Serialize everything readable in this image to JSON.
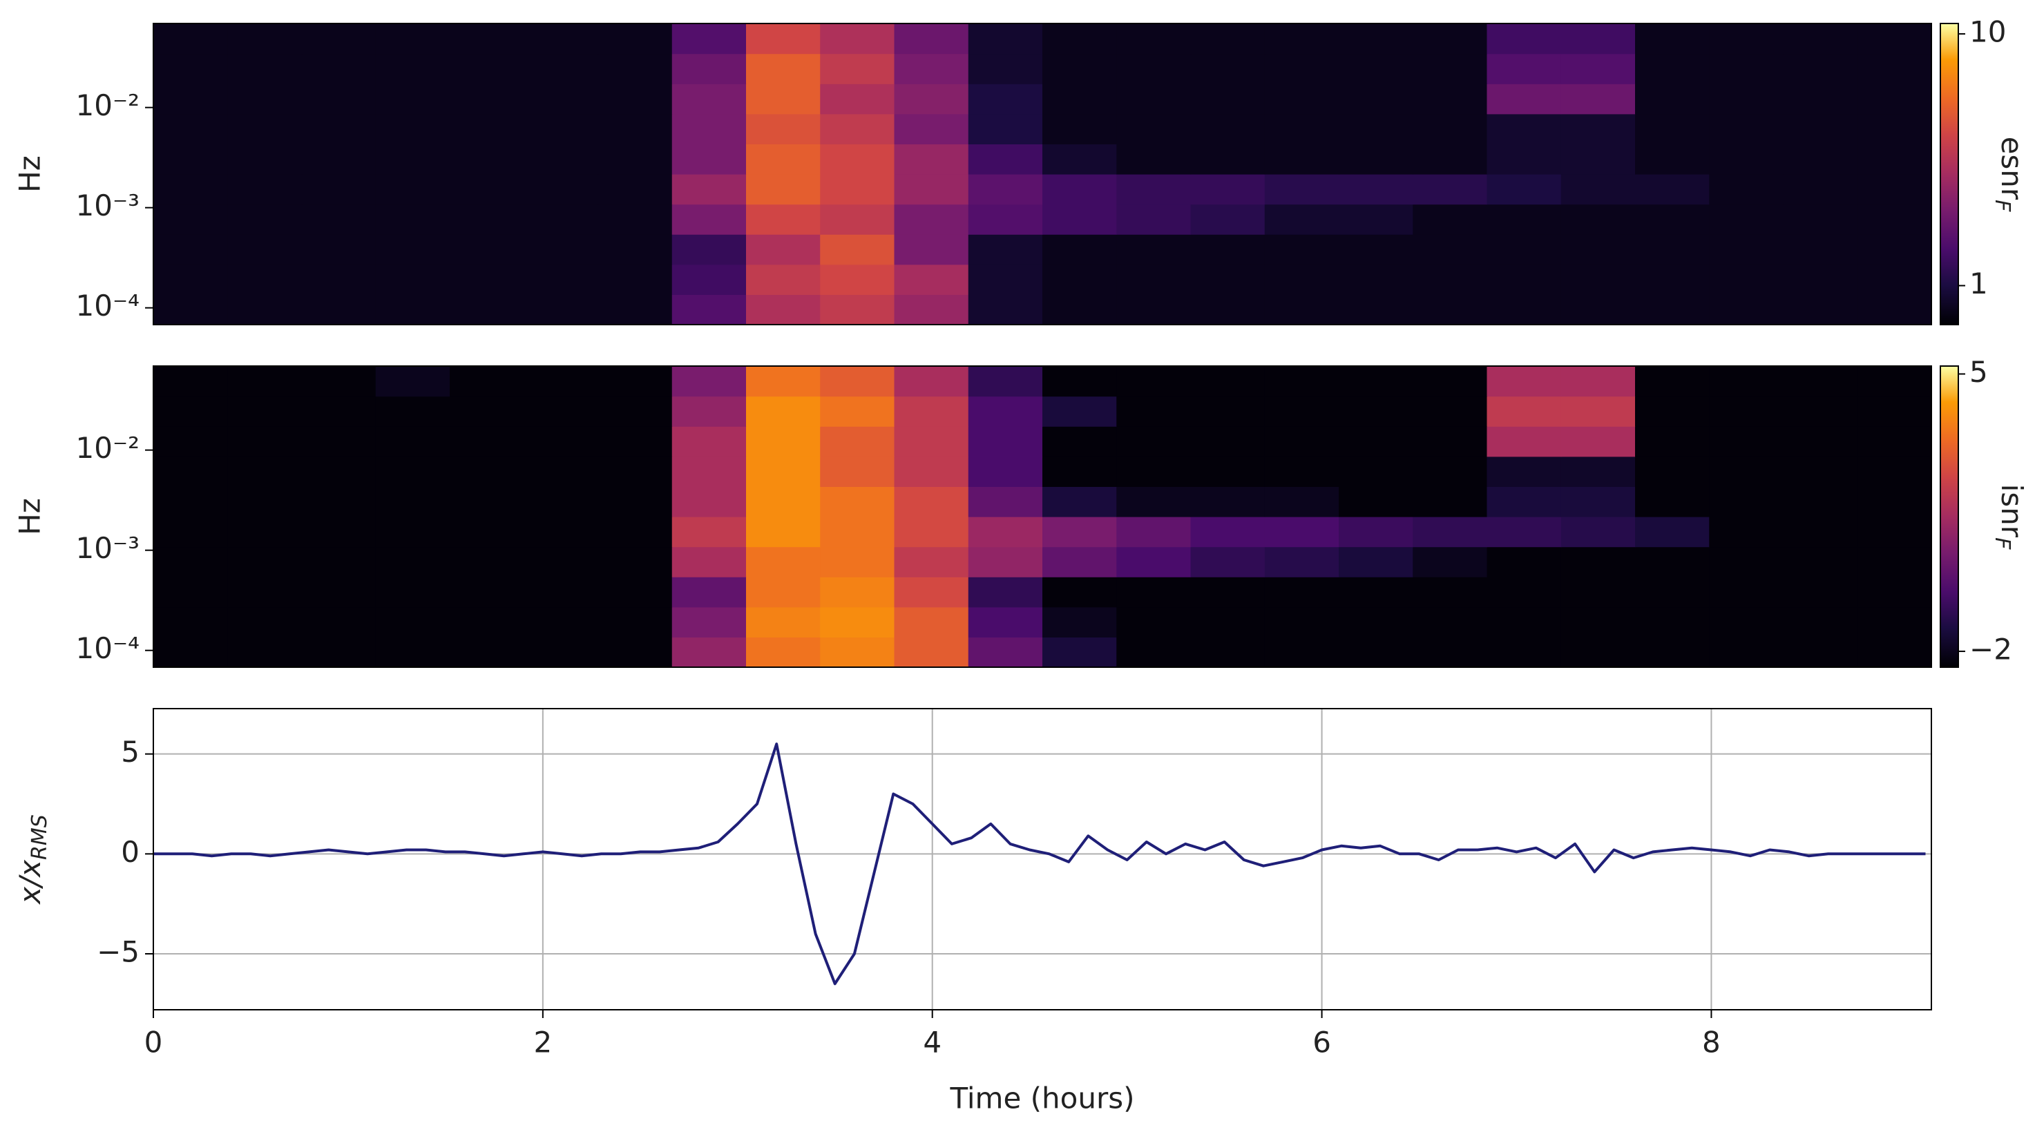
{
  "chart_data": [
    {
      "type": "heatmap",
      "ylabel": "Hz",
      "colormap": "inferno",
      "log_y": true,
      "xlim": [
        0,
        9.13
      ],
      "ylim": [
        6.8e-05,
        0.069
      ],
      "yticks": [
        {
          "value": 0.0001,
          "label": "10⁻⁴"
        },
        {
          "value": 0.001,
          "label": "10⁻³"
        },
        {
          "value": 0.01,
          "label": "10⁻²"
        }
      ],
      "zlim": [
        0.7,
        11
      ],
      "zlog": true,
      "zticks": [
        1,
        10
      ],
      "colorbar_label": "esnr",
      "colorbar_label_sub": "F",
      "z": [
        [
          0.8,
          0.8,
          0.8,
          0.8,
          0.8,
          0.8,
          0.8,
          1.5,
          3,
          3.5,
          2.5,
          0.9,
          0.8,
          0.8,
          0.8,
          0.8,
          0.8,
          0.8,
          0.8,
          0.8,
          0.8,
          0.8,
          0.8,
          0.8
        ],
        [
          0.8,
          0.8,
          0.8,
          0.8,
          0.8,
          0.8,
          0.8,
          1.3,
          3.5,
          4,
          2.8,
          0.9,
          0.8,
          0.8,
          0.8,
          0.8,
          0.8,
          0.8,
          0.8,
          0.8,
          0.8,
          0.8,
          0.8,
          0.8
        ],
        [
          0.8,
          0.8,
          0.8,
          0.8,
          0.8,
          0.8,
          0.8,
          1.2,
          3,
          4.5,
          2,
          0.9,
          0.8,
          0.8,
          0.8,
          0.8,
          0.8,
          0.8,
          0.8,
          0.8,
          0.8,
          0.8,
          0.8,
          0.8
        ],
        [
          0.8,
          0.8,
          0.8,
          0.8,
          0.8,
          0.8,
          0.8,
          2,
          4,
          3.5,
          2,
          1.5,
          1.3,
          1.2,
          1.1,
          0.9,
          0.9,
          0.8,
          0.8,
          0.8,
          0.8,
          0.8,
          0.8,
          0.8
        ],
        [
          0.8,
          0.8,
          0.8,
          0.8,
          0.8,
          0.8,
          0.8,
          2.5,
          5,
          4,
          2.5,
          1.6,
          1.3,
          1.2,
          1.2,
          1.1,
          1.1,
          1.1,
          1,
          0.9,
          0.9,
          0.8,
          0.8,
          0.8
        ],
        [
          0.8,
          0.8,
          0.8,
          0.8,
          0.8,
          0.8,
          0.8,
          2,
          5,
          4,
          2.5,
          1.3,
          0.9,
          0.8,
          0.8,
          0.8,
          0.8,
          0.8,
          0.9,
          0.9,
          0.8,
          0.8,
          0.8,
          0.8
        ],
        [
          0.8,
          0.8,
          0.8,
          0.8,
          0.8,
          0.8,
          0.8,
          2,
          4.5,
          3.5,
          2,
          1,
          0.8,
          0.8,
          0.8,
          0.8,
          0.8,
          0.8,
          0.9,
          0.9,
          0.8,
          0.8,
          0.8,
          0.8
        ],
        [
          0.8,
          0.8,
          0.8,
          0.8,
          0.8,
          0.8,
          0.8,
          2,
          5,
          3,
          2.2,
          1,
          0.8,
          0.8,
          0.8,
          0.8,
          0.8,
          0.8,
          1.8,
          1.8,
          0.8,
          0.8,
          0.8,
          0.8
        ],
        [
          0.8,
          0.8,
          0.8,
          0.8,
          0.8,
          0.8,
          0.8,
          1.8,
          5,
          3.5,
          2,
          0.9,
          0.8,
          0.8,
          0.8,
          0.8,
          0.8,
          0.8,
          1.5,
          1.5,
          0.8,
          0.8,
          0.8,
          0.8
        ],
        [
          0.8,
          0.8,
          0.8,
          0.8,
          0.8,
          0.8,
          0.8,
          1.5,
          4,
          3,
          1.8,
          0.9,
          0.8,
          0.8,
          0.8,
          0.8,
          0.8,
          0.8,
          1.3,
          1.3,
          0.8,
          0.8,
          0.8,
          0.8
        ]
      ]
    },
    {
      "type": "heatmap",
      "ylabel": "Hz",
      "colormap": "inferno",
      "log_y": true,
      "xlim": [
        0,
        9.13
      ],
      "ylim": [
        6.8e-05,
        0.069
      ],
      "yticks": [
        {
          "value": 0.0001,
          "label": "10⁻⁴"
        },
        {
          "value": 0.001,
          "label": "10⁻³"
        },
        {
          "value": 0.01,
          "label": "10⁻²"
        }
      ],
      "zlim": [
        -2.4,
        5.2
      ],
      "zlog": false,
      "zticks": [
        {
          "value": -2,
          "label": "−2"
        },
        5
      ],
      "colorbar_label": "isnr",
      "colorbar_label_sub": "F",
      "z": [
        [
          -2.3,
          -2.3,
          -2.3,
          -2.3,
          -2.3,
          -2.3,
          -2.3,
          1,
          3.5,
          3.8,
          3,
          0,
          -1.5,
          -2.3,
          -2.3,
          -2.3,
          -2.3,
          -2.3,
          -2.3,
          -2.3,
          -2.3,
          -2.3,
          -2.3,
          -2.3
        ],
        [
          -2.3,
          -2.3,
          -2.3,
          -2.3,
          -2.3,
          -2.3,
          -2.3,
          0.5,
          3.8,
          4,
          3,
          -0.5,
          -2,
          -2.3,
          -2.3,
          -2.3,
          -2.3,
          -2.3,
          -2.3,
          -2.3,
          -2.3,
          -2.3,
          -2.3,
          -2.3
        ],
        [
          -2.3,
          -2.3,
          -2.3,
          -2.3,
          -2.3,
          -2.3,
          -2.3,
          0,
          3.5,
          3.8,
          2.5,
          -1,
          -2.3,
          -2.3,
          -2.3,
          -2.3,
          -2.3,
          -2.3,
          -2.3,
          -2.3,
          -2.3,
          -2.3,
          -2.3,
          -2.3
        ],
        [
          -2.3,
          -2.3,
          -2.3,
          -2.3,
          -2.3,
          -2.3,
          -2.3,
          1.5,
          3.5,
          3.5,
          2,
          1,
          0,
          -0.5,
          -1,
          -1.2,
          -1.5,
          -2,
          -2.3,
          -2.3,
          -2.3,
          -2.3,
          -2.3,
          -2.3
        ],
        [
          -2.3,
          -2.3,
          -2.3,
          -2.3,
          -2.3,
          -2.3,
          -2.3,
          2,
          4,
          3.5,
          2.5,
          1.2,
          0.5,
          0,
          -0.5,
          -0.5,
          -0.8,
          -1,
          -1,
          -1.2,
          -1.5,
          -2.3,
          -2.3,
          -2.3
        ],
        [
          -2.3,
          -2.3,
          -2.3,
          -2.3,
          -2.3,
          -2.3,
          -2.3,
          1.5,
          4,
          3.5,
          2.5,
          0,
          -1.5,
          -2,
          -2,
          -2,
          -2.3,
          -2.3,
          -1.5,
          -1.5,
          -2.3,
          -2.3,
          -2.3,
          -2.3
        ],
        [
          -2.3,
          -2.3,
          -2.3,
          -2.3,
          -2.3,
          -2.3,
          -2.3,
          1.5,
          4,
          3,
          2,
          -0.5,
          -2.3,
          -2.3,
          -2.3,
          -2.3,
          -2.3,
          -2.3,
          -1.8,
          -1.8,
          -2.3,
          -2.3,
          -2.3,
          -2.3
        ],
        [
          -2.3,
          -2.3,
          -2.3,
          -2.3,
          -2.3,
          -2.3,
          -2.3,
          1.5,
          4,
          3,
          2,
          -0.5,
          -2.3,
          -2.3,
          -2.3,
          -2.3,
          -2.3,
          -2.3,
          1.5,
          1.5,
          -2.3,
          -2.3,
          -2.3,
          -2.3
        ],
        [
          -2.3,
          -2.3,
          -2.3,
          -2.3,
          -2.3,
          -2.3,
          -2.3,
          1,
          4,
          3.5,
          2,
          -0.5,
          -1.5,
          -2.3,
          -2.3,
          -2.3,
          -2.3,
          -2.3,
          2,
          2,
          -2.3,
          -2.3,
          -2.3,
          -2.3
        ],
        [
          -2.3,
          -2.3,
          -2.3,
          -2,
          -2.3,
          -2.3,
          -2.3,
          0.5,
          3.5,
          3,
          1.5,
          -1,
          -2.3,
          -2.3,
          -2.3,
          -2.3,
          -2.3,
          -2.3,
          1.5,
          1.5,
          -2.3,
          -2.3,
          -2.3,
          -2.3
        ]
      ]
    },
    {
      "type": "line",
      "xlabel": "Time (hours)",
      "ylabel": "x/x",
      "ylabel_sub": "RMS",
      "grid": true,
      "xlim": [
        0,
        9.13
      ],
      "xticks": [
        0,
        2,
        4,
        6,
        8
      ],
      "ylim": [
        -7.8,
        7.27
      ],
      "yticks": [
        {
          "value": -5,
          "label": "−5"
        },
        0,
        5
      ],
      "x": [
        0,
        0.1,
        0.2,
        0.3,
        0.4,
        0.5,
        0.6,
        0.7,
        0.8,
        0.9,
        1,
        1.1,
        1.2,
        1.3,
        1.4,
        1.5,
        1.6,
        1.7,
        1.8,
        1.9,
        2,
        2.1,
        2.2,
        2.3,
        2.4,
        2.5,
        2.6,
        2.7,
        2.8,
        2.9,
        3,
        3.1,
        3.2,
        3.3,
        3.4,
        3.5,
        3.6,
        3.7,
        3.8,
        3.9,
        4,
        4.1,
        4.2,
        4.3,
        4.4,
        4.5,
        4.6,
        4.7,
        4.8,
        4.9,
        5,
        5.1,
        5.2,
        5.3,
        5.4,
        5.5,
        5.6,
        5.7,
        5.8,
        5.9,
        6,
        6.1,
        6.2,
        6.3,
        6.4,
        6.5,
        6.6,
        6.7,
        6.8,
        6.9,
        7,
        7.1,
        7.2,
        7.3,
        7.4,
        7.5,
        7.6,
        7.7,
        7.8,
        7.9,
        8,
        8.1,
        8.2,
        8.3,
        8.4,
        8.5,
        8.6,
        8.7,
        8.8,
        8.9,
        9,
        9.1
      ],
      "series": [
        {
          "color": "#1f1f78",
          "values": [
            0,
            0,
            0,
            -0.1,
            0,
            0,
            -0.1,
            0,
            0.1,
            0.2,
            0.1,
            0,
            0.1,
            0.2,
            0.2,
            0.1,
            0.1,
            0,
            -0.1,
            0,
            0.1,
            0,
            -0.1,
            0,
            0,
            0.1,
            0.1,
            0.2,
            0.3,
            0.6,
            1.5,
            2.5,
            5.5,
            0.5,
            -4,
            -6.5,
            -5,
            -1,
            3,
            2.5,
            1.5,
            0.5,
            0.8,
            1.5,
            0.5,
            0.2,
            0,
            -0.4,
            0.9,
            0.2,
            -0.3,
            0.6,
            0,
            0.5,
            0.2,
            0.6,
            -0.3,
            -0.6,
            -0.4,
            -0.2,
            0.2,
            0.4,
            0.3,
            0.4,
            0,
            0,
            -0.3,
            0.2,
            0.2,
            0.3,
            0.1,
            0.3,
            -0.2,
            0.5,
            -0.9,
            0.2,
            -0.2,
            0.1,
            0.2,
            0.3,
            0.2,
            0.1,
            -0.1,
            0.2,
            0.1,
            -0.1,
            0,
            0,
            0,
            0,
            0,
            0
          ]
        }
      ]
    }
  ]
}
